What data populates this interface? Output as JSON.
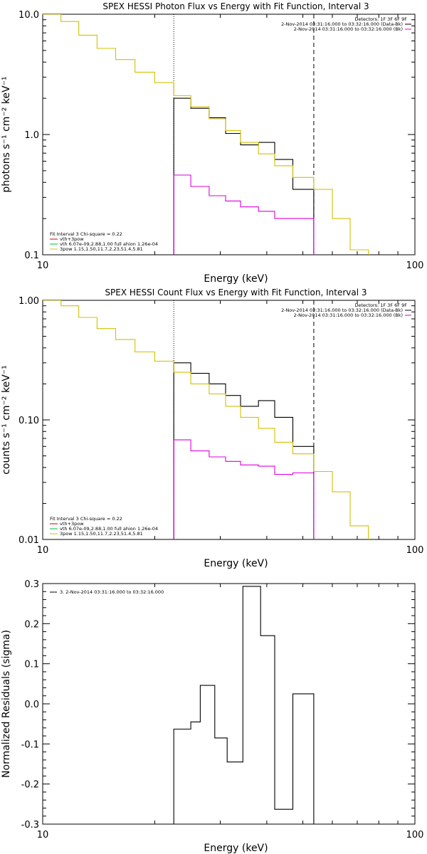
{
  "chart_data": [
    {
      "type": "line",
      "title": "SPEX HESSI Photon Flux vs Energy with Fit Function, Interval 3",
      "xlabel": "Energy (keV)",
      "ylabel": "photons s⁻¹ cm⁻² keV⁻¹",
      "xscale": "log",
      "yscale": "log",
      "xlim": [
        10,
        100
      ],
      "ylim": [
        0.1,
        10
      ],
      "x_ticks": [
        "10",
        "100"
      ],
      "y_ticks": [
        "0.1",
        "1.0",
        "10.0"
      ],
      "vlines": [
        {
          "x": 22.5,
          "style": "dotted"
        },
        {
          "x": 53.5,
          "style": "dashed"
        }
      ],
      "legend_top": [
        "Detectors: 1F 3F 6F 9F",
        "2-Nov-2014 03:31:16.000 to 03:32:16.000 (Data-Bk)",
        "2-Nov-2014 03:31:16.000 to 03:32:16.000 (Bk)"
      ],
      "legend_bottom": [
        "Fit Interval 3   Chi-square = 0.22",
        "vth+3pow",
        "vth 6.07e-09,2.88,1.00  full ahion 1.26e-04",
        "3pow 1.15,1.50,11.7,2.23,51.4,5.81"
      ],
      "series": [
        {
          "name": "2-Nov-2014 03:31:16.000 to 03:32:16.000 (Data-Bk)",
          "color": "#000000",
          "edges": [
            22.5,
            25,
            28,
            31,
            34,
            38,
            42,
            47,
            53.5
          ],
          "values": [
            2.0,
            1.65,
            1.38,
            1.02,
            0.82,
            0.86,
            0.62,
            0.35
          ]
        },
        {
          "name": "2-Nov-2014 03:31:16.000 to 03:32:16.000 (Bk)",
          "color": "#dd00dd",
          "edges": [
            22.5,
            25,
            28,
            31,
            34,
            38,
            42,
            47,
            53.5
          ],
          "values": [
            0.46,
            0.37,
            0.31,
            0.28,
            0.25,
            0.23,
            0.2,
            0.2
          ]
        },
        {
          "name": "vth+3pow",
          "color": "#d4c000",
          "edges": [
            9.5,
            11.2,
            12.5,
            14,
            15.7,
            17.7,
            20,
            22.5,
            25,
            28,
            31,
            34,
            38,
            42,
            47,
            53.5,
            60,
            67,
            75
          ],
          "values": [
            10.5,
            8.7,
            6.7,
            5.2,
            4.2,
            3.3,
            2.7,
            2.1,
            1.7,
            1.35,
            1.08,
            0.86,
            0.69,
            0.55,
            0.44,
            0.35,
            0.2,
            0.11
          ]
        }
      ]
    },
    {
      "type": "line",
      "title": "SPEX HESSI Count Flux vs Energy with Fit Function, Interval 3",
      "xlabel": "Energy (keV)",
      "ylabel": "counts s⁻¹ cm⁻² keV⁻¹",
      "xscale": "log",
      "yscale": "log",
      "xlim": [
        10,
        100
      ],
      "ylim": [
        0.01,
        1.0
      ],
      "x_ticks": [
        "10",
        "100"
      ],
      "y_ticks": [
        "0.01",
        "0.10",
        "1.00"
      ],
      "vlines": [
        {
          "x": 22.5,
          "style": "dotted"
        },
        {
          "x": 53.5,
          "style": "dashed"
        }
      ],
      "legend_top": [
        "Detectors: 1F 3F 6F 9F",
        "2-Nov-2014 03:31:16.000 to 03:32:16.000 (Data-Bk)",
        "2-Nov-2014 03:31:16.000 to 03:32:16.000 (Bk)"
      ],
      "legend_bottom": [
        "Fit Interval 3   Chi-square = 0.22",
        "vth+3pow",
        "vth 6.07e-09,2.88,1.00  full ahion 1.26e-04",
        "3pow 1.15,1.50,11.7,2.23,51.4,5.81"
      ],
      "series": [
        {
          "name": "2-Nov-2014 03:31:16.000 to 03:32:16.000 (Data-Bk)",
          "color": "#000000",
          "edges": [
            22.5,
            25,
            28,
            31,
            34,
            38,
            42,
            47,
            53.5
          ],
          "values": [
            0.3,
            0.245,
            0.2,
            0.16,
            0.13,
            0.145,
            0.105,
            0.06
          ]
        },
        {
          "name": "2-Nov-2014 03:31:16.000 to 03:32:16.000 (Bk)",
          "color": "#dd00dd",
          "edges": [
            22.5,
            25,
            28,
            31,
            34,
            38,
            42,
            47,
            53.5
          ],
          "values": [
            0.068,
            0.055,
            0.049,
            0.045,
            0.042,
            0.041,
            0.035,
            0.036
          ]
        },
        {
          "name": "vth+3pow",
          "color": "#d4c000",
          "edges": [
            9.5,
            11.2,
            12.5,
            14,
            15.7,
            17.7,
            20,
            22.5,
            25,
            28,
            31,
            34,
            38,
            42,
            47,
            53.5,
            60,
            67,
            75
          ],
          "values": [
            1.05,
            0.9,
            0.72,
            0.58,
            0.47,
            0.37,
            0.31,
            0.25,
            0.2,
            0.165,
            0.13,
            0.105,
            0.085,
            0.065,
            0.052,
            0.037,
            0.025,
            0.013
          ]
        }
      ]
    },
    {
      "type": "line",
      "title": "",
      "xlabel": "Energy (keV)",
      "ylabel": "Normalized Residuals (sigma)",
      "xscale": "log",
      "yscale": "linear",
      "xlim": [
        10,
        100
      ],
      "ylim": [
        -0.3,
        0.3
      ],
      "x_ticks": [
        "10",
        "100"
      ],
      "y_ticks": [
        "-0.3",
        "-0.2",
        "-0.1",
        "0.0",
        "0.1",
        "0.2",
        "0.3"
      ],
      "legend_top": [
        "3.  2-Nov-2014 03:31:16.000 to 03:32:16.000"
      ],
      "series": [
        {
          "name": "3.  2-Nov-2014 03:31:16.000 to 03:32:16.000",
          "color": "#000000",
          "edges": [
            22.5,
            25,
            26.5,
            29,
            31.3,
            34.5,
            38.5,
            42,
            47,
            53.5
          ],
          "values": [
            -0.063,
            -0.045,
            0.046,
            -0.085,
            -0.145,
            0.293,
            0.17,
            -0.263,
            0.025
          ]
        }
      ]
    }
  ]
}
